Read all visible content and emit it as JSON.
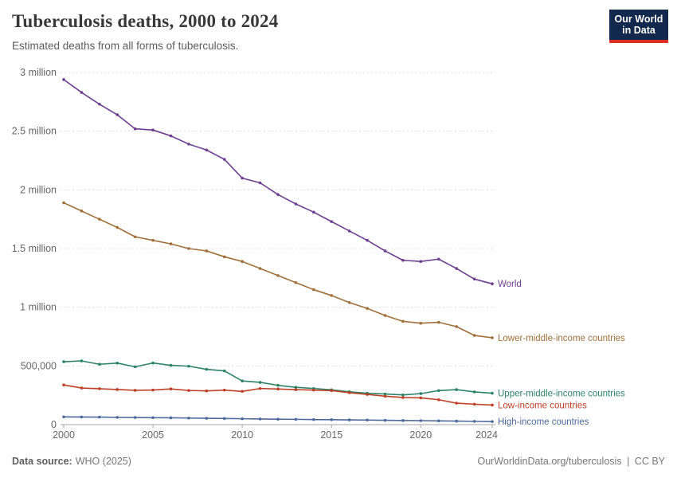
{
  "header": {
    "title": "Tuberculosis deaths, 2000 to 2024",
    "subtitle": "Estimated deaths from all forms of tuberculosis.",
    "logo": {
      "line1": "Our World",
      "line2": "in Data"
    }
  },
  "footer": {
    "source_label": "Data source:",
    "source_value": "WHO (2025)",
    "link": "OurWorldinData.org/tuberculosis",
    "divider": "|",
    "license": "CC BY"
  },
  "colors": {
    "grid": "#dedede",
    "axis": "#a5a5a5",
    "tick_label": "#666666",
    "logo_bg": "#12294d",
    "logo_underline": "#dc2e22"
  },
  "chart_data": {
    "type": "line",
    "title": "Tuberculosis deaths, 2000 to 2024",
    "xlabel": "",
    "ylabel": "Estimated deaths",
    "x": [
      2000,
      2001,
      2002,
      2003,
      2004,
      2005,
      2006,
      2007,
      2008,
      2009,
      2010,
      2011,
      2012,
      2013,
      2014,
      2015,
      2016,
      2017,
      2018,
      2019,
      2020,
      2021,
      2022,
      2023,
      2024
    ],
    "xticks": [
      2000,
      2005,
      2010,
      2015,
      2020,
      2024
    ],
    "ylim": [
      0,
      3000000
    ],
    "yticks": [
      {
        "value": 0,
        "label": "0"
      },
      {
        "value": 500000,
        "label": "500,000"
      },
      {
        "value": 1000000,
        "label": "1 million"
      },
      {
        "value": 1500000,
        "label": "1.5 million"
      },
      {
        "value": 2000000,
        "label": "2 million"
      },
      {
        "value": 2500000,
        "label": "2.5 million"
      },
      {
        "value": 3000000,
        "label": "3 million"
      }
    ],
    "grid": "horizontal-dashed",
    "legend_position": "right-end-labels",
    "series": [
      {
        "name": "World",
        "color": "#6d3e91",
        "values": [
          2940000,
          2830000,
          2730000,
          2640000,
          2520000,
          2510000,
          2460000,
          2390000,
          2340000,
          2260000,
          2100000,
          2060000,
          1960000,
          1880000,
          1810000,
          1730000,
          1650000,
          1570000,
          1480000,
          1400000,
          1390000,
          1410000,
          1330000,
          1240000,
          1200000
        ]
      },
      {
        "name": "Lower-middle-income countries",
        "color": "#a1703a",
        "values": [
          1890000,
          1820000,
          1750000,
          1680000,
          1600000,
          1570000,
          1540000,
          1500000,
          1480000,
          1430000,
          1390000,
          1330000,
          1270000,
          1210000,
          1150000,
          1100000,
          1040000,
          990000,
          930000,
          880000,
          864000,
          872000,
          835000,
          760000,
          740000
        ]
      },
      {
        "name": "Upper-middle-income countries",
        "color": "#2c8465",
        "values": [
          536000,
          543000,
          514000,
          524000,
          493000,
          525000,
          505000,
          498000,
          471000,
          458000,
          372000,
          360000,
          335000,
          318000,
          308000,
          297000,
          280000,
          268000,
          261000,
          253000,
          264000,
          290000,
          298000,
          279000,
          268000
        ]
      },
      {
        "name": "Low-income countries",
        "color": "#bf3f26",
        "values": [
          338000,
          312000,
          306000,
          299000,
          292000,
          295000,
          304000,
          291000,
          287000,
          294000,
          283000,
          308000,
          303000,
          298000,
          294000,
          290000,
          272000,
          257000,
          242000,
          231000,
          228000,
          212000,
          183000,
          174000,
          167000
        ]
      },
      {
        "name": "High-income countries",
        "color": "#4c6a9c",
        "values": [
          66000,
          65000,
          64000,
          62000,
          61000,
          59000,
          58000,
          56000,
          54000,
          52000,
          50000,
          48000,
          46000,
          45000,
          43000,
          42000,
          40000,
          39000,
          37000,
          35000,
          34000,
          32000,
          30000,
          28000,
          26000
        ]
      }
    ]
  }
}
